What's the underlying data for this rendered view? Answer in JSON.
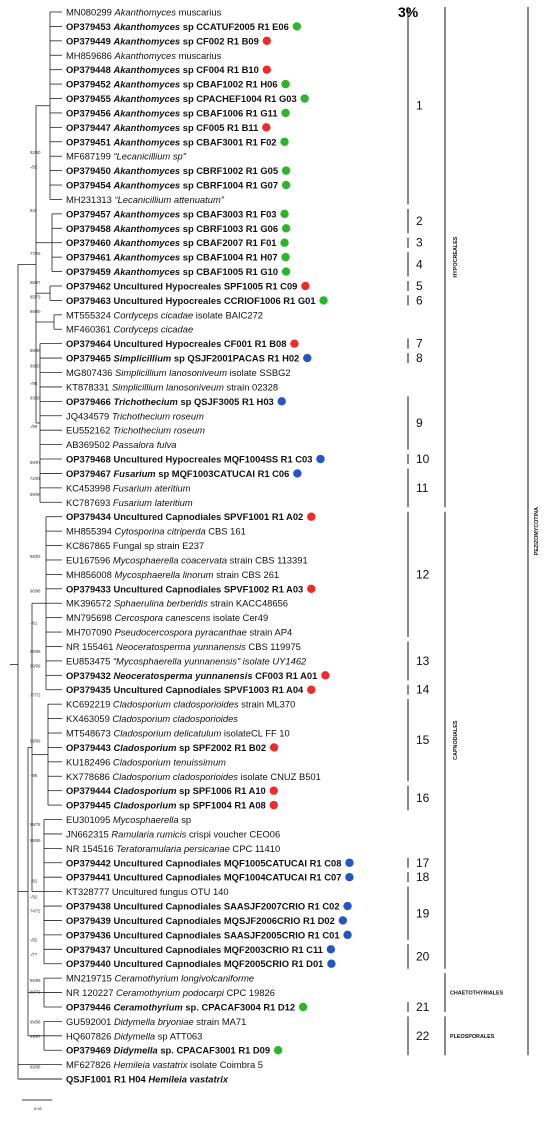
{
  "scale_label": "3%",
  "scale_bar_text": "0.02",
  "dot_colors": {
    "red": "#ee2b2b",
    "green": "#2bb52b",
    "blue": "#2356c4"
  },
  "taxa": [
    {
      "acc": "MN080299",
      "genus": "Akanthomyces",
      "rest": "muscarius",
      "bold": false,
      "dot": null
    },
    {
      "acc": "OP379453",
      "genus": "Akanthomyces",
      "rest": "sp CCATUF2005 R1 E06",
      "bold": true,
      "dot": "green"
    },
    {
      "acc": "OP379449",
      "genus": "Akanthomyces",
      "rest": "sp CF002 R1 B09",
      "bold": true,
      "dot": "red"
    },
    {
      "acc": "MH859686",
      "genus": "Akanthomyces",
      "rest": "muscarius",
      "bold": false,
      "dot": null
    },
    {
      "acc": "OP379448",
      "genus": "Akanthomyces",
      "rest": "sp CF004 R1 B10",
      "bold": true,
      "dot": "red"
    },
    {
      "acc": "OP379452",
      "genus": "Akanthomyces",
      "rest": "sp CBAF1002 R1 H06",
      "bold": true,
      "dot": "green"
    },
    {
      "acc": "OP379455",
      "genus": "Akanthomyces",
      "rest": "sp CPACHEF1004 R1 G03",
      "bold": true,
      "dot": "green"
    },
    {
      "acc": "OP379456",
      "genus": "Akanthomyces",
      "rest": "sp CBAF1006 R1 G11",
      "bold": true,
      "dot": "green"
    },
    {
      "acc": "OP379447",
      "genus": "Akanthomyces",
      "rest": "sp CF005 R1 B11",
      "bold": true,
      "dot": "red"
    },
    {
      "acc": "OP379451",
      "genus": "Akanthomyces",
      "rest": "sp CBAF3001 R1 F02",
      "bold": true,
      "dot": "green"
    },
    {
      "acc": "MF687199",
      "genus": "",
      "rest": "“Lecanicillium sp”",
      "bold": false,
      "dot": null
    },
    {
      "acc": "OP379450",
      "genus": "Akanthomyces",
      "rest": "sp CBRF1002 R1 G05",
      "bold": true,
      "dot": "green"
    },
    {
      "acc": "OP379454",
      "genus": "Akanthomyces",
      "rest": "sp CBRF1004 R1 G07",
      "bold": true,
      "dot": "green"
    },
    {
      "acc": "MH231313",
      "genus": "",
      "rest": "“Lecanicillium attenuatum”",
      "bold": false,
      "dot": null
    },
    {
      "acc": "OP379457",
      "genus": "Akanthomyces",
      "rest": "sp CBAF3003 R1 F03",
      "bold": true,
      "dot": "green"
    },
    {
      "acc": "OP379458",
      "genus": "Akanthomyces",
      "rest": "sp CBRF1003 R1 G06",
      "bold": true,
      "dot": "green"
    },
    {
      "acc": "OP379460",
      "genus": "Akanthomyces",
      "rest": "sp CBAF2007 R1 F01",
      "bold": true,
      "dot": "green"
    },
    {
      "acc": "OP379461",
      "genus": "Akanthomyces",
      "rest": "sp CBAF1004 R1 H07",
      "bold": true,
      "dot": "green"
    },
    {
      "acc": "OP379459",
      "genus": "Akanthomyces",
      "rest": "sp CBAF1005 R1 G10",
      "bold": true,
      "dot": "green"
    },
    {
      "acc": "OP379462",
      "genus": "",
      "rest": "Uncultured Hypocreales SPF1005 R1 C09",
      "bold": true,
      "dot": "red"
    },
    {
      "acc": "OP379463",
      "genus": "",
      "rest": "Uncultured Hypocreales CCRIOF1006 R1 G01",
      "bold": true,
      "dot": "green"
    },
    {
      "acc": "MT555324",
      "genus": "Cordyceps cicadae",
      "rest": "isolate BAIC272",
      "bold": false,
      "dot": null
    },
    {
      "acc": "MF460361",
      "genus": "Cordyceps cicadae",
      "rest": "",
      "bold": false,
      "dot": null
    },
    {
      "acc": "OP379464",
      "genus": "",
      "rest": "Uncultured Hypocreales CF001 R1 B08",
      "bold": true,
      "dot": "red"
    },
    {
      "acc": "OP379465",
      "genus": "Simplicillium",
      "rest": "sp QSJF2001PACAS R1 H02",
      "bold": true,
      "dot": "blue"
    },
    {
      "acc": "MG807436",
      "genus": "Simplicillium lanosoniveum",
      "rest": "isolate SSBG2",
      "bold": false,
      "dot": null
    },
    {
      "acc": "KT878331",
      "genus": "Simplicillium lanosoniveum",
      "rest": "strain 02328",
      "bold": false,
      "dot": null
    },
    {
      "acc": "OP379466",
      "genus": "Trichothecium",
      "rest": "sp QSJF3005 R1 H03",
      "bold": true,
      "dot": "blue"
    },
    {
      "acc": "JQ434579",
      "genus": "Trichothecium roseum",
      "rest": "",
      "bold": false,
      "dot": null
    },
    {
      "acc": "EU552162",
      "genus": "Trichothecium roseum",
      "rest": "",
      "bold": false,
      "dot": null
    },
    {
      "acc": "AB369502",
      "genus": "Passalora fulva",
      "rest": "",
      "bold": false,
      "dot": null
    },
    {
      "acc": "OP379468",
      "genus": "",
      "rest": "Uncultured Hypocreales MQF1004SS R1 C03",
      "bold": true,
      "dot": "blue"
    },
    {
      "acc": "OP379467",
      "genus": "Fusarium",
      "rest": "sp MQF1003CATUCAI R1 C06",
      "bold": true,
      "dot": "blue"
    },
    {
      "acc": "KC453998",
      "genus": "Fusarium ateritium",
      "rest": "",
      "bold": false,
      "dot": null
    },
    {
      "acc": "KC787693",
      "genus": "Fusarium lateritium",
      "rest": "",
      "bold": false,
      "dot": null
    },
    {
      "acc": "OP379434",
      "genus": "",
      "rest": "Uncultured Capnodiales SPVF1001 R1 A02",
      "bold": true,
      "dot": "red"
    },
    {
      "acc": "MH855394",
      "genus": "Cytosporina citriperda",
      "rest": "CBS 161",
      "bold": false,
      "dot": null
    },
    {
      "acc": "KC867865",
      "genus": "",
      "rest": "Fungal sp strain E237",
      "bold": false,
      "dot": null
    },
    {
      "acc": "EU167596",
      "genus": "Mycosphaerella coacervata",
      "rest": "strain CBS 113391",
      "bold": false,
      "dot": null
    },
    {
      "acc": "MH856008",
      "genus": "Mycosphaerella linorum",
      "rest": "strain CBS 261",
      "bold": false,
      "dot": null
    },
    {
      "acc": "OP379433",
      "genus": "",
      "rest": "Uncultured Capnodiales SPVF1002 R1 A03",
      "bold": true,
      "dot": "red"
    },
    {
      "acc": "MK396572",
      "genus": "Sphaerulina berberidis",
      "rest": "strain KACC48656",
      "bold": false,
      "dot": null
    },
    {
      "acc": "MN795698",
      "genus": "Cercospora canescens",
      "rest": "isolate Cer49",
      "bold": false,
      "dot": null
    },
    {
      "acc": "MH707090",
      "genus": "Pseudocercospora pyracanthae",
      "rest": "strain AP4",
      "bold": false,
      "dot": null
    },
    {
      "acc": "NR 155461",
      "genus": "Neoceratosperma yunnanensis",
      "rest": "CBS 119975",
      "bold": false,
      "dot": null
    },
    {
      "acc": "EU853475",
      "genus": "",
      "rest": "“Mycosphaerella yunnanensis” isolate UY1462",
      "bold": false,
      "dot": null
    },
    {
      "acc": "OP379432",
      "genus": "Neoceratosperma yunnanensis",
      "rest": "CF003 R1 A01",
      "bold": true,
      "dot": "red"
    },
    {
      "acc": "OP379435",
      "genus": "",
      "rest": "Uncultured Capnodiales SPVF1003 R1 A04",
      "bold": true,
      "dot": "red"
    },
    {
      "acc": "KC692219",
      "genus": "Cladosporium cladosporioides",
      "rest": "strain ML370",
      "bold": false,
      "dot": null
    },
    {
      "acc": "KX463059",
      "genus": "Cladosporium cladosporioides",
      "rest": "",
      "bold": false,
      "dot": null
    },
    {
      "acc": "MT548673",
      "genus": "Cladosporium delicatulum",
      "rest": "isolateCL FF 10",
      "bold": false,
      "dot": null
    },
    {
      "acc": "OP379443",
      "genus": "Cladosporium",
      "rest": "sp SPF2002 R1 B02",
      "bold": true,
      "dot": "red"
    },
    {
      "acc": "KU182496",
      "genus": "Cladosporium tenuissimum",
      "rest": "",
      "bold": false,
      "dot": null
    },
    {
      "acc": "KX778686",
      "genus": "Cladosporium cladosporioides",
      "rest": "isolate CNUZ B501",
      "bold": false,
      "dot": null
    },
    {
      "acc": "OP379444",
      "genus": "Cladosporium",
      "rest": "sp SPF1006 R1 A10",
      "bold": true,
      "dot": "red"
    },
    {
      "acc": "OP379445",
      "genus": "Cladosporium",
      "rest": "sp SPF1004 R1 A08",
      "bold": true,
      "dot": "red"
    },
    {
      "acc": "EU301095",
      "genus": "Mycosphaerella",
      "rest": "sp",
      "bold": false,
      "dot": null
    },
    {
      "acc": "JN662315",
      "genus": "Ramularia rumicis",
      "rest": "crispi voucher CEO06",
      "bold": false,
      "dot": null
    },
    {
      "acc": "NR 154516",
      "genus": "Teratoramularia persicariae",
      "rest": "CPC 11410",
      "bold": false,
      "dot": null
    },
    {
      "acc": "OP379442",
      "genus": "",
      "rest": "Uncultured Capnodiales MQF1005CATUCAI R1 C08",
      "bold": true,
      "dot": "blue"
    },
    {
      "acc": "OP379441",
      "genus": "",
      "rest": "Uncultured Capnodiales MQF1004CATUCAI R1 C07",
      "bold": true,
      "dot": "blue"
    },
    {
      "acc": "KT328777",
      "genus": "",
      "rest": "Uncultured fungus OTU 140",
      "bold": false,
      "dot": null
    },
    {
      "acc": "OP379438",
      "genus": "",
      "rest": "Uncultured Capnodiales  SAASJF2007CRIO R1 C02",
      "bold": true,
      "dot": "blue"
    },
    {
      "acc": "OP379439",
      "genus": "",
      "rest": "Uncultured Capnodiales MQSJF2006CRIO R1 D02",
      "bold": true,
      "dot": "blue"
    },
    {
      "acc": "OP379436",
      "genus": "",
      "rest": "Uncultured Capnodiales SAASJF2005CRIO R1 C01",
      "bold": true,
      "dot": "blue"
    },
    {
      "acc": "OP379437",
      "genus": "",
      "rest": "Uncultured Capnodiales MQF2003CRIO R1 C11",
      "bold": true,
      "dot": "blue"
    },
    {
      "acc": "OP379440",
      "genus": "",
      "rest": "Uncultured Capnodiales MQF2005CRIO R1 D01",
      "bold": true,
      "dot": "blue"
    },
    {
      "acc": "MN219715",
      "genus": "Ceramothyrium longivolcaniforme",
      "rest": "",
      "bold": false,
      "dot": null
    },
    {
      "acc": "NR 120227",
      "genus": "Ceramothyrium podocarpi",
      "rest": "CPC 19826",
      "bold": false,
      "dot": null
    },
    {
      "acc": "OP379446",
      "genus": "Ceramothyrium",
      "rest": "sp. CPACAF3004 R1 D12",
      "bold": true,
      "dot": "green"
    },
    {
      "acc": "GU592001",
      "genus": "Didymella bryoniae",
      "rest": "strain MA71",
      "bold": false,
      "dot": null
    },
    {
      "acc": "HQ607826",
      "genus": "Didymella",
      "rest": "sp ATT063",
      "bold": false,
      "dot": null
    },
    {
      "acc": "OP379469",
      "genus": "Didymella",
      "rest": "sp. CPACAF3001 R1 D09",
      "bold": true,
      "dot": "green"
    },
    {
      "acc": "MF627826",
      "genus": "Hemileia vastatrix",
      "rest": "isolate Coimbra 5",
      "bold": false,
      "dot": null
    },
    {
      "acc": "QSJF1001 R1 H04",
      "genus": "Hemileia vastatrix",
      "rest": "",
      "bold": true,
      "dot": null
    }
  ],
  "clusters": [
    {
      "label": "1",
      "from": 0,
      "to": 13
    },
    {
      "label": "2",
      "from": 14,
      "to": 15
    },
    {
      "label": "3",
      "from": 16,
      "to": 16
    },
    {
      "label": "4",
      "from": 17,
      "to": 18
    },
    {
      "label": "5",
      "from": 19,
      "to": 19
    },
    {
      "label": "6",
      "from": 20,
      "to": 20
    },
    {
      "label": "7",
      "from": 23,
      "to": 23
    },
    {
      "label": "8",
      "from": 24,
      "to": 24
    },
    {
      "label": "9",
      "from": 27,
      "to": 30
    },
    {
      "label": "10",
      "from": 31,
      "to": 31
    },
    {
      "label": "11",
      "from": 32,
      "to": 34
    },
    {
      "label": "12",
      "from": 35,
      "to": 43
    },
    {
      "label": "13",
      "from": 44,
      "to": 46
    },
    {
      "label": "14",
      "from": 47,
      "to": 47
    },
    {
      "label": "15",
      "from": 48,
      "to": 53
    },
    {
      "label": "16",
      "from": 54,
      "to": 55
    },
    {
      "label": "17",
      "from": 59,
      "to": 59
    },
    {
      "label": "18",
      "from": 60,
      "to": 60
    },
    {
      "label": "19",
      "from": 61,
      "to": 64
    },
    {
      "label": "20",
      "from": 65,
      "to": 66
    },
    {
      "label": "21",
      "from": 69,
      "to": 69
    },
    {
      "label": "22",
      "from": 70,
      "to": 72
    }
  ],
  "orders": [
    {
      "label": "HYPOCREALES",
      "from": 0,
      "to": 34
    },
    {
      "label": "CAPNODIALES",
      "from": 35,
      "to": 66
    },
    {
      "label": "CHAETOTHYRIALES",
      "from": 67,
      "to": 69
    },
    {
      "label": "PLEOSPORALES",
      "from": 70,
      "to": 72
    }
  ],
  "class": {
    "label": "PEZIZOMYCOTINA",
    "from": 0,
    "to": 72
  },
  "support_values": [
    {
      "text": "92/80",
      "row": 10
    },
    {
      "text": "-/92",
      "row": 11
    },
    {
      "text": "82/-",
      "row": 14
    },
    {
      "text": "77/93",
      "row": 17
    },
    {
      "text": "96/97",
      "row": 19
    },
    {
      "text": "85/73",
      "row": 20
    },
    {
      "text": "99/90",
      "row": 21
    },
    {
      "text": "98/95",
      "row": 23.7
    },
    {
      "text": "99/93",
      "row": 24.8
    },
    {
      "text": "-/98",
      "row": 26
    },
    {
      "text": "93/99",
      "row": 27
    },
    {
      "text": "-/99",
      "row": 29
    },
    {
      "text": "99/97",
      "row": 31.5
    },
    {
      "text": "72/91",
      "row": 32.6
    },
    {
      "text": "99/99",
      "row": 33.7
    },
    {
      "text": "98/83",
      "row": 38
    },
    {
      "text": "98/98",
      "row": 40.4
    },
    {
      "text": "-/61",
      "row": 42.6
    },
    {
      "text": "99/99",
      "row": 44.6
    },
    {
      "text": "99/99",
      "row": 45.6
    },
    {
      "text": "77/72",
      "row": 47.6
    },
    {
      "text": "99/99",
      "row": 50.8
    },
    {
      "text": "-/98",
      "row": 53.2
    },
    {
      "text": "99/78",
      "row": 56.6
    },
    {
      "text": "99/99",
      "row": 57.7
    },
    {
      "text": "-/82",
      "row": 60.5
    },
    {
      "text": "-/92",
      "row": 61.6
    },
    {
      "text": "74/72",
      "row": 62.6
    },
    {
      "text": "-/82",
      "row": 64.6
    },
    {
      "text": "-/77",
      "row": 65.6
    },
    {
      "text": "99/99",
      "row": 67.4
    },
    {
      "text": "99/72",
      "row": 68.2
    },
    {
      "text": "99/96",
      "row": 70.3
    },
    {
      "text": "99/97",
      "row": 71.3
    },
    {
      "text": "99/98",
      "row": 73.4
    }
  ]
}
